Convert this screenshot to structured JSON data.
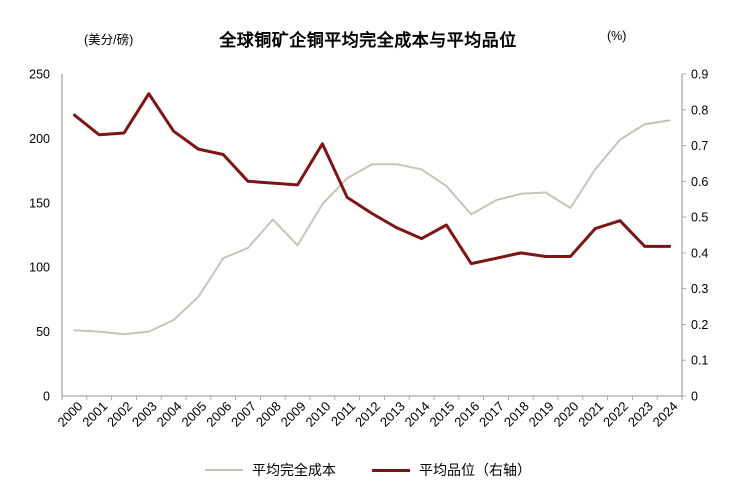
{
  "chart_data": {
    "type": "line",
    "title": "全球铜矿企铜平均完全成本与平均品位",
    "grid": false,
    "legend_position": "bottom",
    "categories": [
      "2000",
      "2001",
      "2002",
      "2003",
      "2004",
      "2005",
      "2006",
      "2007",
      "2008",
      "2009",
      "2010",
      "2011",
      "2012",
      "2013",
      "2014",
      "2015",
      "2016",
      "2017",
      "2018",
      "2019",
      "2020",
      "2021",
      "2022",
      "2023",
      "2024"
    ],
    "left_axis": {
      "label": "(美分/磅)",
      "min": 0,
      "max": 250,
      "step": 50
    },
    "right_axis": {
      "label": "(%)",
      "min": 0,
      "max": 0.9,
      "step": 0.1
    },
    "series": [
      {
        "name": "平均完全成本",
        "axis": "left",
        "color": "#c7c5b7",
        "values": [
          51,
          50,
          48,
          50,
          59,
          77,
          107,
          115,
          137,
          117,
          149,
          169,
          180,
          180,
          176,
          163,
          141,
          152,
          157,
          158,
          146,
          176,
          199,
          211,
          214
        ]
      },
      {
        "name": "平均品位（右轴）",
        "axis": "right",
        "color": "#7e1416",
        "values": [
          0.785,
          0.73,
          0.735,
          0.845,
          0.74,
          0.69,
          0.675,
          0.6,
          0.595,
          0.59,
          0.705,
          0.555,
          0.51,
          0.47,
          0.44,
          0.478,
          0.37,
          0.385,
          0.4,
          0.39,
          0.39,
          0.468,
          0.49,
          0.418,
          0.418
        ]
      }
    ],
    "colors": {
      "axis": "#a8a8a8",
      "text": "#000000"
    }
  }
}
